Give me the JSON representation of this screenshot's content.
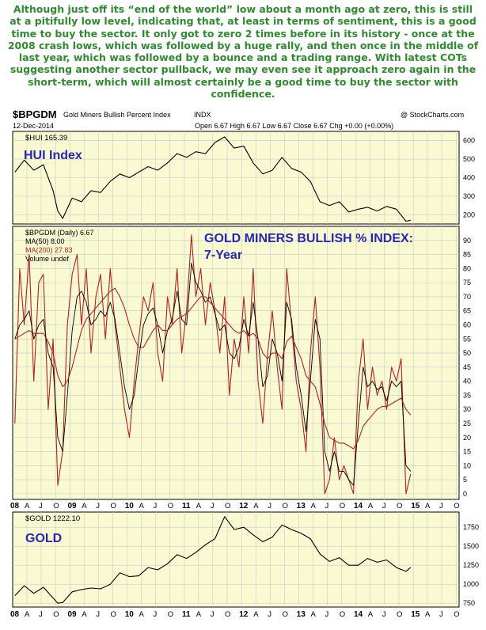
{
  "commentary": "Although just off its “end of the world” low about a month ago at zero, this is still at a pitifully low level, indicating that, at least in terms of sentiment, this is a good time to buy the sector. It only got to zero 2 times before in its history - once at the 2008 crash lows, which was followed by a huge rally, and then once in the middle of last year, which was followed by a bounce and a trading range. With latest COTs suggesting another sector pullback, we may even see it approach zero again in the short-term, which will almost certainly be a good time to buy the sector with confidence.",
  "header": {
    "symbol": "$BPGDM",
    "name": "Gold Miners Bullish Percent Index",
    "exchange": "INDX",
    "credit": "@ StockCharts.com",
    "date": "12-Dec-2014",
    "ohlc": "Open 6.67   High 6.67   Low 6.67   Close 6.67   Chg +0.00 (+0.00%)"
  },
  "colors": {
    "panel_bg": "#fafad2",
    "price_line": "#000000",
    "ma50": "#000000",
    "ma200": "#b22222",
    "title_blue": "#2727b6",
    "commentary_green": "#2e8b2e",
    "grid": "#c8c8c8"
  },
  "x_axis_labels": [
    "08",
    "A",
    "J",
    "O",
    "09",
    "A",
    "J",
    "O",
    "10",
    "A",
    "J",
    "O",
    "11",
    "A",
    "J",
    "O",
    "12",
    "A",
    "J",
    "O",
    "13",
    "A",
    "J",
    "O",
    "14",
    "A",
    "J",
    "O",
    "15",
    "A",
    "J",
    "O"
  ],
  "chart_data": [
    {
      "type": "line",
      "panel": "top",
      "legend": "$HUI 165.39",
      "annotation": "HUI Index",
      "yticks": [
        200,
        300,
        400,
        500,
        600
      ],
      "ylim": [
        150,
        650
      ],
      "grid": true,
      "x": [
        "2008-01",
        "2008-03",
        "2008-05",
        "2008-07",
        "2008-09",
        "2008-10",
        "2008-11",
        "2009-01",
        "2009-03",
        "2009-05",
        "2009-07",
        "2009-09",
        "2009-11",
        "2010-01",
        "2010-03",
        "2010-05",
        "2010-07",
        "2010-09",
        "2010-11",
        "2011-01",
        "2011-03",
        "2011-05",
        "2011-07",
        "2011-09",
        "2011-11",
        "2012-01",
        "2012-03",
        "2012-05",
        "2012-07",
        "2012-09",
        "2012-11",
        "2013-01",
        "2013-03",
        "2013-05",
        "2013-07",
        "2013-09",
        "2013-11",
        "2014-01",
        "2014-03",
        "2014-05",
        "2014-07",
        "2014-09",
        "2014-11",
        "2014-12"
      ],
      "series": [
        {
          "name": "$HUI",
          "values": [
            430,
            495,
            440,
            470,
            330,
            220,
            180,
            290,
            270,
            330,
            320,
            380,
            420,
            400,
            430,
            460,
            440,
            480,
            530,
            510,
            540,
            530,
            590,
            620,
            560,
            570,
            480,
            420,
            440,
            510,
            450,
            430,
            380,
            270,
            250,
            270,
            215,
            230,
            240,
            220,
            245,
            230,
            165,
            170
          ]
        }
      ]
    },
    {
      "type": "line",
      "panel": "middle",
      "legend": [
        "$BPGDM (Daily) 6.67",
        "MA(50) 8.00",
        "MA(200) 27.83",
        "Volume undef"
      ],
      "annotation": [
        "GOLD MINERS BULLISH % INDEX:",
        "7-Year"
      ],
      "yticks": [
        0,
        5,
        10,
        15,
        20,
        25,
        30,
        35,
        40,
        45,
        50,
        55,
        60,
        65,
        70,
        75,
        80,
        85,
        90
      ],
      "ylim": [
        -2,
        95
      ],
      "grid": true,
      "x": [
        "2008-01",
        "2008-02",
        "2008-03",
        "2008-04",
        "2008-05",
        "2008-06",
        "2008-07",
        "2008-08",
        "2008-09",
        "2008-10",
        "2008-11",
        "2008-12",
        "2009-01",
        "2009-02",
        "2009-03",
        "2009-04",
        "2009-05",
        "2009-06",
        "2009-07",
        "2009-08",
        "2009-09",
        "2009-10",
        "2009-11",
        "2009-12",
        "2010-01",
        "2010-02",
        "2010-03",
        "2010-04",
        "2010-05",
        "2010-06",
        "2010-07",
        "2010-08",
        "2010-09",
        "2010-10",
        "2010-11",
        "2010-12",
        "2011-01",
        "2011-02",
        "2011-03",
        "2011-04",
        "2011-05",
        "2011-06",
        "2011-07",
        "2011-08",
        "2011-09",
        "2011-10",
        "2011-11",
        "2011-12",
        "2012-01",
        "2012-02",
        "2012-03",
        "2012-04",
        "2012-05",
        "2012-06",
        "2012-07",
        "2012-08",
        "2012-09",
        "2012-10",
        "2012-11",
        "2012-12",
        "2013-01",
        "2013-02",
        "2013-03",
        "2013-04",
        "2013-05",
        "2013-06",
        "2013-07",
        "2013-08",
        "2013-09",
        "2013-10",
        "2013-11",
        "2013-12",
        "2014-01",
        "2014-02",
        "2014-03",
        "2014-04",
        "2014-05",
        "2014-06",
        "2014-07",
        "2014-08",
        "2014-09",
        "2014-10",
        "2014-11",
        "2014-12"
      ],
      "series": [
        {
          "name": "$BPGDM",
          "values": [
            25,
            80,
            60,
            85,
            40,
            75,
            78,
            30,
            55,
            3,
            15,
            60,
            78,
            85,
            60,
            80,
            50,
            70,
            78,
            55,
            80,
            60,
            45,
            30,
            20,
            40,
            55,
            70,
            65,
            75,
            50,
            40,
            70,
            60,
            80,
            50,
            65,
            92,
            70,
            80,
            60,
            75,
            65,
            50,
            70,
            35,
            55,
            45,
            70,
            50,
            80,
            40,
            25,
            50,
            65,
            45,
            30,
            80,
            60,
            40,
            30,
            15,
            50,
            70,
            45,
            0,
            5,
            20,
            5,
            10,
            5,
            0,
            40,
            55,
            30,
            45,
            35,
            40,
            30,
            45,
            40,
            48,
            0,
            7
          ]
        },
        {
          "name": "MA(50)",
          "values": [
            55,
            60,
            62,
            65,
            55,
            60,
            62,
            50,
            45,
            20,
            15,
            35,
            58,
            70,
            72,
            68,
            60,
            62,
            65,
            63,
            68,
            62,
            50,
            38,
            30,
            35,
            48,
            60,
            64,
            66,
            60,
            50,
            58,
            62,
            72,
            62,
            60,
            82,
            75,
            72,
            68,
            70,
            64,
            58,
            60,
            50,
            48,
            52,
            62,
            56,
            68,
            55,
            38,
            42,
            55,
            50,
            40,
            68,
            62,
            45,
            35,
            22,
            40,
            62,
            55,
            15,
            8,
            15,
            8,
            8,
            5,
            3,
            25,
            45,
            38,
            40,
            37,
            38,
            33,
            40,
            38,
            40,
            10,
            8
          ]
        },
        {
          "name": "MA(200)",
          "values": [
            55,
            56,
            57,
            58,
            57,
            57,
            57,
            54,
            50,
            42,
            38,
            40,
            45,
            52,
            58,
            62,
            64,
            66,
            68,
            70,
            72,
            73,
            70,
            66,
            60,
            55,
            52,
            52,
            55,
            58,
            60,
            58,
            58,
            60,
            62,
            63,
            64,
            66,
            68,
            70,
            70,
            68,
            66,
            64,
            62,
            60,
            58,
            57,
            58,
            56,
            57,
            55,
            50,
            48,
            50,
            50,
            48,
            54,
            56,
            52,
            48,
            42,
            40,
            38,
            32,
            25,
            20,
            19,
            18,
            18,
            17,
            16,
            19,
            24,
            26,
            28,
            30,
            31,
            31,
            32,
            33,
            34,
            30,
            28
          ]
        }
      ]
    },
    {
      "type": "line",
      "panel": "bottom",
      "legend": "$GOLD 1222.10",
      "annotation": "GOLD",
      "yticks": [
        750,
        1000,
        1250,
        1500,
        1750
      ],
      "ylim": [
        700,
        1950
      ],
      "grid": true,
      "x": [
        "2008-01",
        "2008-03",
        "2008-05",
        "2008-07",
        "2008-09",
        "2008-10",
        "2008-11",
        "2009-01",
        "2009-03",
        "2009-05",
        "2009-07",
        "2009-09",
        "2009-11",
        "2010-01",
        "2010-03",
        "2010-05",
        "2010-07",
        "2010-09",
        "2010-11",
        "2011-01",
        "2011-03",
        "2011-05",
        "2011-07",
        "2011-09",
        "2011-11",
        "2012-01",
        "2012-03",
        "2012-05",
        "2012-07",
        "2012-09",
        "2012-11",
        "2013-01",
        "2013-03",
        "2013-05",
        "2013-07",
        "2013-09",
        "2013-11",
        "2014-01",
        "2014-03",
        "2014-05",
        "2014-07",
        "2014-09",
        "2014-11",
        "2014-12"
      ],
      "series": [
        {
          "name": "$GOLD",
          "values": [
            850,
            980,
            880,
            960,
            820,
            750,
            760,
            900,
            930,
            950,
            940,
            1000,
            1150,
            1100,
            1110,
            1220,
            1190,
            1270,
            1390,
            1340,
            1420,
            1520,
            1600,
            1890,
            1720,
            1750,
            1650,
            1560,
            1620,
            1780,
            1720,
            1670,
            1600,
            1400,
            1300,
            1350,
            1250,
            1250,
            1340,
            1290,
            1320,
            1220,
            1170,
            1222
          ]
        }
      ]
    }
  ]
}
